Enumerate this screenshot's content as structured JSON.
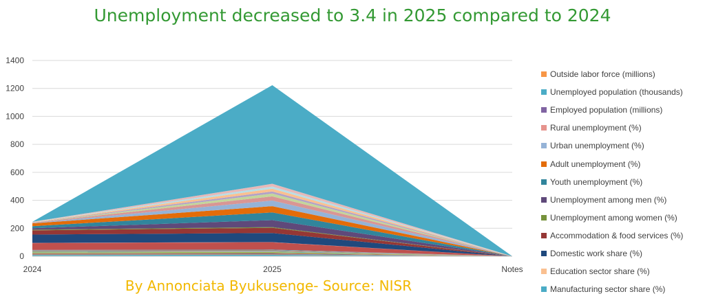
{
  "chart_data": {
    "type": "area",
    "title": "Unemployment decreased to 3.4 in 2025 compared to 2024",
    "subtitle": "By Annonciata Byukusenge- Source: NISR",
    "categories": [
      "2024",
      "2025",
      "Notes"
    ],
    "ylim": [
      0,
      1400
    ],
    "yticks": [
      0,
      200,
      400,
      600,
      800,
      1000,
      1200,
      1400
    ],
    "grid": true,
    "stacked": true,
    "legend_position": "right",
    "series": [
      {
        "name": "Manufacturing sector share (%)",
        "color": "#4bacc6",
        "values": [
          9,
          10,
          0
        ]
      },
      {
        "name": "Education sector share (%)",
        "color": "#f79646",
        "values": [
          3,
          3,
          0
        ]
      },
      {
        "name": "Domestic work share (%)",
        "color": "#4f81bd",
        "values": [
          4,
          4,
          0
        ]
      },
      {
        "name": "Accommodation & food services (%)",
        "color": "#c0504d",
        "values": [
          4,
          5,
          0
        ]
      },
      {
        "name": "Unemployment among women (%)",
        "color": "#9bbb59",
        "values": [
          8,
          8,
          0
        ]
      },
      {
        "name": "Unemployment among men (%)",
        "color": "#8064a2",
        "values": [
          1,
          1,
          0
        ]
      },
      {
        "name": "Youth unemployment (%)",
        "color": "#4bacc6",
        "values": [
          3,
          3,
          0
        ]
      },
      {
        "name": "Adult unemployment (%)",
        "color": "#f79646",
        "values": [
          1,
          1,
          0
        ]
      },
      {
        "name": "Urban unemployment (%)",
        "color": "#4f81bd",
        "values": [
          1,
          1,
          0
        ]
      },
      {
        "name": "Rural unemployment (%)",
        "color": "#c0504d",
        "values": [
          2,
          2,
          0
        ]
      },
      {
        "name": "Employed population (millions)",
        "color": "#9bbb59",
        "values": [
          4,
          4,
          0
        ]
      },
      {
        "name": "Unemployed population (thousands)",
        "color": "#8064a2",
        "values": [
          3,
          3,
          0
        ]
      },
      {
        "name": "Outside labor force (millions)",
        "color": "#4bacc6",
        "values": [
          2,
          2,
          0
        ]
      },
      {
        "name": "Manufacturing sector share (%)",
        "color": "#c0504d",
        "values": [
          48,
          52,
          0
        ]
      },
      {
        "name": "Education sector share (%)",
        "color": "#e46c6c",
        "values": [
          2,
          2,
          0
        ]
      },
      {
        "name": "Domestic work share (%)",
        "color": "#1f497d",
        "values": [
          60,
          65,
          0
        ]
      },
      {
        "name": "Accommodation & food services (%)",
        "color": "#953735",
        "values": [
          30,
          37,
          0
        ]
      },
      {
        "name": "Unemployment among women (%)",
        "color": "#76923c",
        "values": [
          5,
          5,
          0
        ]
      },
      {
        "name": "Unemployment among men (%)",
        "color": "#5f497a",
        "values": [
          10,
          50,
          0
        ]
      },
      {
        "name": "Youth unemployment (%)",
        "color": "#31859c",
        "values": [
          15,
          55,
          0
        ]
      },
      {
        "name": "Adult unemployment (%)",
        "color": "#e36c09",
        "values": [
          20,
          45,
          0
        ]
      },
      {
        "name": "Urban unemployment (%)",
        "color": "#95b3d7",
        "values": [
          2,
          40,
          0
        ]
      },
      {
        "name": "Rural unemployment (%)",
        "color": "#d99694",
        "values": [
          3,
          30,
          0
        ]
      },
      {
        "name": "Employed population (millions)",
        "color": "#c3d69b",
        "values": [
          1,
          20,
          0
        ]
      },
      {
        "name": "Unemployed population (thousands)",
        "color": "#b2a1c7",
        "values": [
          1,
          15,
          0
        ]
      },
      {
        "name": "Outside labor force (millions)",
        "color": "#fac090",
        "values": [
          2,
          20,
          0
        ]
      },
      {
        "name": "Manufacturing sector share (%)",
        "color": "#b7dee8",
        "values": [
          1,
          15,
          0
        ]
      },
      {
        "name": "Education sector share (%)",
        "color": "#e6b9b8",
        "values": [
          1,
          20,
          0
        ]
      },
      {
        "name": "Domestic work share (%)",
        "color": "#4bacc6",
        "values": [
          0,
          705,
          0
        ]
      }
    ],
    "legend": [
      {
        "name": "Outside labor force (millions)",
        "color": "#f79646"
      },
      {
        "name": "Unemployed population (thousands)",
        "color": "#4bacc6"
      },
      {
        "name": "Employed population (millions)",
        "color": "#8064a2"
      },
      {
        "name": "Rural unemployment (%)",
        "color": "#e6938d"
      },
      {
        "name": "Urban unemployment (%)",
        "color": "#95b3d7"
      },
      {
        "name": "Adult unemployment (%)",
        "color": "#e36c09"
      },
      {
        "name": "Youth unemployment (%)",
        "color": "#31859c"
      },
      {
        "name": "Unemployment among men (%)",
        "color": "#5f497a"
      },
      {
        "name": "Unemployment among women (%)",
        "color": "#76923c"
      },
      {
        "name": "Accommodation & food services (%)",
        "color": "#953735"
      },
      {
        "name": "Domestic work share (%)",
        "color": "#1f497d"
      },
      {
        "name": "Education sector share (%)",
        "color": "#fac090"
      },
      {
        "name": "Manufacturing sector share (%)",
        "color": "#4bacc6"
      }
    ]
  },
  "colors": {
    "title": "#339933",
    "subtitle": "#f2b800",
    "grid": "#d9d9d9",
    "axis": "#bfbfbf"
  }
}
